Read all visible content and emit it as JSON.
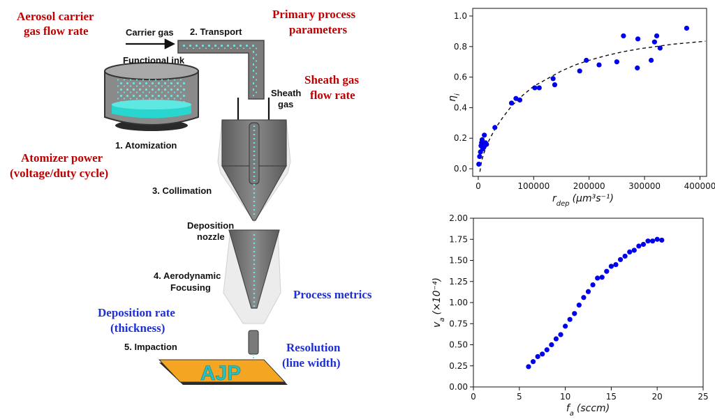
{
  "diagram": {
    "steps": {
      "transport": "2. Transport",
      "atomization": "1. Atomization",
      "collimation": "3. Collimation",
      "focusing_line1": "4. Aerodynamic",
      "focusing_line2": "Focusing",
      "impaction": "5. Impaction"
    },
    "labels": {
      "carrier_gas": "Carrier gas",
      "functional_ink": "Functional ink",
      "sheath_gas_line1": "Sheath",
      "sheath_gas_line2": "gas",
      "deposition_nozzle_line1": "Deposition",
      "deposition_nozzle_line2": "nozzle",
      "substrate_text": "AJP"
    },
    "parameters": {
      "aerosol_line1": "Aerosol carrier",
      "aerosol_line2": "gas flow rate",
      "primary_line1": "Primary process",
      "primary_line2": "parameters",
      "sheath_line1": "Sheath gas",
      "sheath_line2": "flow rate",
      "atomizer_line1": "Atomizer power",
      "atomizer_line2": "(voltage/duty cycle)"
    },
    "metrics": {
      "process_metrics": "Process metrics",
      "deposition_line1": "Deposition rate",
      "deposition_line2": "(thickness)",
      "resolution_line1": "Resolution",
      "resolution_line2": "(line width)"
    }
  },
  "chart_data": [
    {
      "type": "scatter",
      "xlabel_main": "r",
      "xlabel_sub": "dep",
      "xlabel_unit": "(μm³s⁻¹)",
      "ylabel_main": "η",
      "ylabel_sub": "i",
      "xlim": [
        -10000,
        412000
      ],
      "ylim": [
        -0.05,
        1.05
      ],
      "xticks": [
        0,
        100000,
        200000,
        300000,
        400000
      ],
      "xtick_labels": [
        "0",
        "100000",
        "200000",
        "300000",
        "400000"
      ],
      "yticks": [
        0.0,
        0.2,
        0.4,
        0.6,
        0.8,
        1.0
      ],
      "ytick_labels": [
        "0.0",
        "0.2",
        "0.4",
        "0.6",
        "0.8",
        "1.0"
      ],
      "marker_color": "#0000ee",
      "fit_line": "dashed",
      "points": [
        [
          1000,
          0.03
        ],
        [
          2500,
          0.08
        ],
        [
          4000,
          0.11
        ],
        [
          5000,
          0.15
        ],
        [
          6000,
          0.17
        ],
        [
          7000,
          0.19
        ],
        [
          8000,
          0.13
        ],
        [
          9000,
          0.16
        ],
        [
          10000,
          0.14
        ],
        [
          11000,
          0.22
        ],
        [
          13000,
          0.17
        ],
        [
          15000,
          0.16
        ],
        [
          30000,
          0.27
        ],
        [
          60000,
          0.43
        ],
        [
          68000,
          0.46
        ],
        [
          75000,
          0.45
        ],
        [
          102000,
          0.53
        ],
        [
          110000,
          0.53
        ],
        [
          135000,
          0.59
        ],
        [
          138000,
          0.55
        ],
        [
          183000,
          0.64
        ],
        [
          195000,
          0.71
        ],
        [
          218000,
          0.68
        ],
        [
          250000,
          0.7
        ],
        [
          262000,
          0.87
        ],
        [
          287000,
          0.66
        ],
        [
          288000,
          0.85
        ],
        [
          312000,
          0.71
        ],
        [
          318000,
          0.83
        ],
        [
          322000,
          0.87
        ],
        [
          328000,
          0.79
        ],
        [
          376000,
          0.92
        ]
      ],
      "fit": [
        [
          3000,
          -0.02
        ],
        [
          6000,
          0.05
        ],
        [
          10000,
          0.1
        ],
        [
          15000,
          0.15
        ],
        [
          20000,
          0.19
        ],
        [
          30000,
          0.26
        ],
        [
          45000,
          0.34
        ],
        [
          60000,
          0.41
        ],
        [
          80000,
          0.48
        ],
        [
          100000,
          0.54
        ],
        [
          125000,
          0.59
        ],
        [
          150000,
          0.64
        ],
        [
          175000,
          0.68
        ],
        [
          200000,
          0.71
        ],
        [
          230000,
          0.74
        ],
        [
          260000,
          0.765
        ],
        [
          290000,
          0.785
        ],
        [
          320000,
          0.8
        ],
        [
          350000,
          0.815
        ],
        [
          380000,
          0.825
        ],
        [
          410000,
          0.835
        ]
      ]
    },
    {
      "type": "scatter",
      "xlabel_main": "f",
      "xlabel_sub": "a",
      "xlabel_unit": "(sccm)",
      "ylabel_main": "v",
      "ylabel_sub": "a",
      "ylabel_unit": "(×10⁻⁴)",
      "xlim": [
        0,
        25
      ],
      "ylim": [
        0,
        2.0
      ],
      "xticks": [
        0,
        5,
        10,
        15,
        20,
        25
      ],
      "xtick_labels": [
        "0",
        "5",
        "10",
        "15",
        "20",
        "25"
      ],
      "yticks": [
        0.0,
        0.25,
        0.5,
        0.75,
        1.0,
        1.25,
        1.5,
        1.75,
        2.0
      ],
      "ytick_labels": [
        "0.00",
        "0.25",
        "0.50",
        "0.75",
        "1.00",
        "1.25",
        "1.50",
        "1.75",
        "2.00"
      ],
      "marker_color": "#0000ee",
      "points": [
        [
          6.0,
          0.24
        ],
        [
          6.5,
          0.3
        ],
        [
          7.0,
          0.36
        ],
        [
          7.5,
          0.39
        ],
        [
          8.0,
          0.44
        ],
        [
          8.5,
          0.5
        ],
        [
          9.0,
          0.57
        ],
        [
          9.5,
          0.62
        ],
        [
          10.0,
          0.72
        ],
        [
          10.5,
          0.8
        ],
        [
          11.0,
          0.87
        ],
        [
          11.5,
          0.97
        ],
        [
          12.0,
          1.06
        ],
        [
          12.5,
          1.13
        ],
        [
          13.0,
          1.21
        ],
        [
          13.5,
          1.29
        ],
        [
          14.0,
          1.3
        ],
        [
          14.5,
          1.37
        ],
        [
          15.0,
          1.43
        ],
        [
          15.5,
          1.45
        ],
        [
          16.0,
          1.51
        ],
        [
          16.5,
          1.55
        ],
        [
          17.0,
          1.6
        ],
        [
          17.5,
          1.62
        ],
        [
          18.0,
          1.67
        ],
        [
          18.5,
          1.69
        ],
        [
          19.0,
          1.73
        ],
        [
          19.5,
          1.73
        ],
        [
          20.0,
          1.75
        ],
        [
          20.5,
          1.74
        ]
      ]
    }
  ]
}
